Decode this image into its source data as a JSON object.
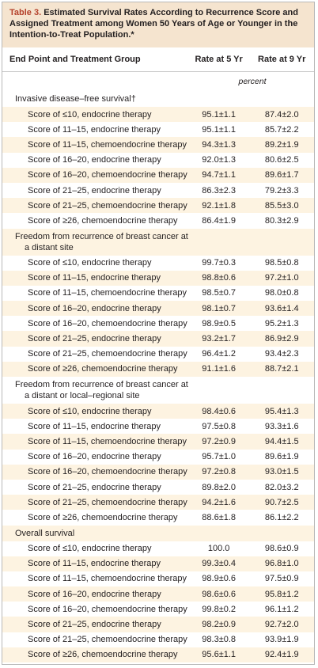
{
  "header": {
    "label": "Table 3.",
    "title": "Estimated Survival Rates According to Recurrence Score and Assigned Treatment among Women 50 Years of Age or Younger in the Intention-to-Treat Population.*"
  },
  "table": {
    "columns": [
      "End Point and Treatment Group",
      "Rate at 5 Yr",
      "Rate at 9 Yr"
    ],
    "unit": "percent",
    "sections": [
      {
        "title": "Invasive disease–free survival†",
        "rows": [
          [
            "Score of ≤10, endocrine therapy",
            "95.1±1.1",
            "87.4±2.0"
          ],
          [
            "Score of 11–15, endocrine therapy",
            "95.1±1.1",
            "85.7±2.2"
          ],
          [
            "Score of 11–15, chemoendocrine therapy",
            "94.3±1.3",
            "89.2±1.9"
          ],
          [
            "Score of 16–20, endocrine therapy",
            "92.0±1.3",
            "80.6±2.5"
          ],
          [
            "Score of 16–20, chemoendocrine therapy",
            "94.7±1.1",
            "89.6±1.7"
          ],
          [
            "Score of 21–25, endocrine therapy",
            "86.3±2.3",
            "79.2±3.3"
          ],
          [
            "Score of 21–25, chemoendocrine therapy",
            "92.1±1.8",
            "85.5±3.0"
          ],
          [
            "Score of ≥26, chemoendocrine therapy",
            "86.4±1.9",
            "80.3±2.9"
          ]
        ]
      },
      {
        "title": "Freedom from recurrence of breast cancer at a distant site",
        "rows": [
          [
            "Score of ≤10, endocrine therapy",
            "99.7±0.3",
            "98.5±0.8"
          ],
          [
            "Score of 11–15, endocrine therapy",
            "98.8±0.6",
            "97.2±1.0"
          ],
          [
            "Score of 11–15, chemoendocrine therapy",
            "98.5±0.7",
            "98.0±0.8"
          ],
          [
            "Score of 16–20, endocrine therapy",
            "98.1±0.7",
            "93.6±1.4"
          ],
          [
            "Score of 16–20, chemoendocrine therapy",
            "98.9±0.5",
            "95.2±1.3"
          ],
          [
            "Score of 21–25, endocrine therapy",
            "93.2±1.7",
            "86.9±2.9"
          ],
          [
            "Score of 21–25, chemoendocrine therapy",
            "96.4±1.2",
            "93.4±2.3"
          ],
          [
            "Score of ≥26, chemoendocrine therapy",
            "91.1±1.6",
            "88.7±2.1"
          ]
        ]
      },
      {
        "title": "Freedom from recurrence of breast cancer at a distant or local–regional site",
        "rows": [
          [
            "Score of ≤10, endocrine therapy",
            "98.4±0.6",
            "95.4±1.3"
          ],
          [
            "Score of 11–15, endocrine therapy",
            "97.5±0.8",
            "93.3±1.6"
          ],
          [
            "Score of 11–15, chemoendocrine therapy",
            "97.2±0.9",
            "94.4±1.5"
          ],
          [
            "Score of 16–20, endocrine therapy",
            "95.7±1.0",
            "89.6±1.9"
          ],
          [
            "Score of 16–20, chemoendocrine therapy",
            "97.2±0.8",
            "93.0±1.5"
          ],
          [
            "Score of 21–25, endocrine therapy",
            "89.8±2.0",
            "82.0±3.2"
          ],
          [
            "Score of 21–25, chemoendocrine therapy",
            "94.2±1.6",
            "90.7±2.5"
          ],
          [
            "Score of ≥26, chemoendocrine therapy",
            "88.6±1.8",
            "86.1±2.2"
          ]
        ]
      },
      {
        "title": "Overall survival",
        "rows": [
          [
            "Score of ≤10, endocrine therapy",
            "100.0",
            "98.6±0.9"
          ],
          [
            "Score of 11–15, endocrine therapy",
            "99.3±0.4",
            "96.8±1.0"
          ],
          [
            "Score of 11–15, chemoendocrine therapy",
            "98.9±0.6",
            "97.5±0.9"
          ],
          [
            "Score of 16–20, endocrine therapy",
            "98.6±0.6",
            "95.8±1.2"
          ],
          [
            "Score of 16–20, chemoendocrine therapy",
            "99.8±0.2",
            "96.1±1.2"
          ],
          [
            "Score of 21–25, endocrine therapy",
            "98.2±0.9",
            "92.7±2.0"
          ],
          [
            "Score of 21–25, chemoendocrine therapy",
            "98.3±0.8",
            "93.9±1.9"
          ],
          [
            "Score of ≥26, chemoendocrine therapy",
            "95.6±1.1",
            "92.4±1.9"
          ]
        ]
      }
    ]
  }
}
